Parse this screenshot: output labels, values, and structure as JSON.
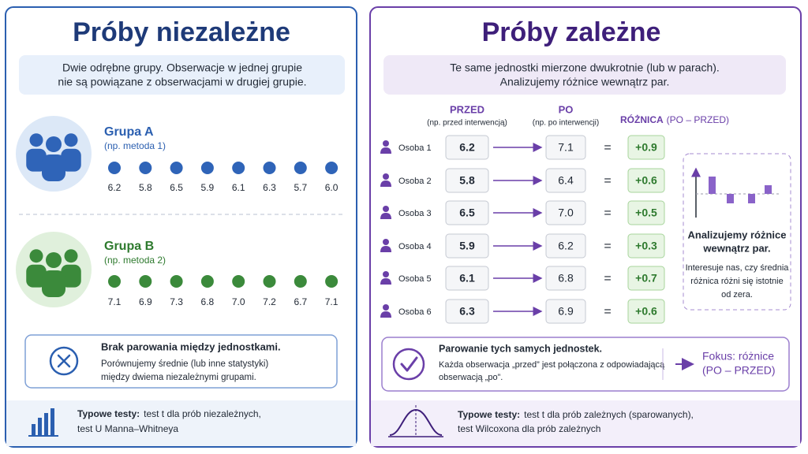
{
  "left": {
    "title": "Próby niezależne",
    "description": [
      "Dwie odrębne grupy. Obserwacje w jednej grupie",
      "nie są powiązane z obserwacjami w drugiej grupie."
    ],
    "groups": [
      {
        "name": "Grupa A",
        "note": "(np. metoda 1)",
        "values": [
          "6.2",
          "5.8",
          "6.5",
          "5.9",
          "6.1",
          "6.3",
          "5.7",
          "6.0"
        ]
      },
      {
        "name": "Grupa B",
        "note": "(np. metoda 2)",
        "values": [
          "7.1",
          "6.9",
          "7.3",
          "6.8",
          "7.0",
          "7.2",
          "6.7",
          "7.1"
        ]
      }
    ],
    "callout": {
      "title": "Brak parowania między jednostkami.",
      "text": [
        "Porównujemy średnie (lub inne statystyki)",
        "między dwiema niezależnymi grupami."
      ]
    },
    "footer": {
      "label": "Typowe testy:",
      "tests": [
        "test t dla prób niezależnych,",
        "test U Manna–Whitneya"
      ]
    }
  },
  "right": {
    "title": "Próby zależne",
    "description": [
      "Te same jednostki mierzone dwukrotnie (lub w parach).",
      "Analizujemy różnice wewnątrz par."
    ],
    "headers": {
      "before": "PRZED",
      "before_note": "(np. przed interwencją)",
      "after": "PO",
      "after_note": "(np. po interwencji)",
      "difference": "RÓŻNICA",
      "difference_note": "(PO – PRZED)"
    },
    "equals": "=",
    "rows": [
      {
        "person": "Osoba 1",
        "before": "6.2",
        "after": "7.1",
        "difference": "+0.9"
      },
      {
        "person": "Osoba 2",
        "before": "5.8",
        "after": "6.4",
        "difference": "+0.6"
      },
      {
        "person": "Osoba 3",
        "before": "6.5",
        "after": "7.0",
        "difference": "+0.5"
      },
      {
        "person": "Osoba 4",
        "before": "5.9",
        "after": "6.2",
        "difference": "+0.3"
      },
      {
        "person": "Osoba 5",
        "before": "6.1",
        "after": "6.8",
        "difference": "+0.7"
      },
      {
        "person": "Osoba 6",
        "before": "6.3",
        "after": "6.9",
        "difference": "+0.6"
      }
    ],
    "side_note": {
      "title": [
        "Analizujemy różnice",
        "wewnątrz par."
      ],
      "text": [
        "Interesuje nas, czy średnia",
        "różnica różni się istotnie",
        "od zera."
      ]
    },
    "callout": {
      "title": "Parowanie tych samych jednostek.",
      "text": [
        "Każda obserwacja „przed” jest połączona z odpowiadającą",
        "obserwacją „po”."
      ],
      "focus": [
        "Fokus: różnice",
        "(PO – PRZED)"
      ]
    },
    "footer": {
      "label": "Typowe testy:",
      "tests": [
        "test t dla prób zależnych (sparowanych),",
        "test Wilcoxona dla prób zależnych"
      ]
    }
  }
}
